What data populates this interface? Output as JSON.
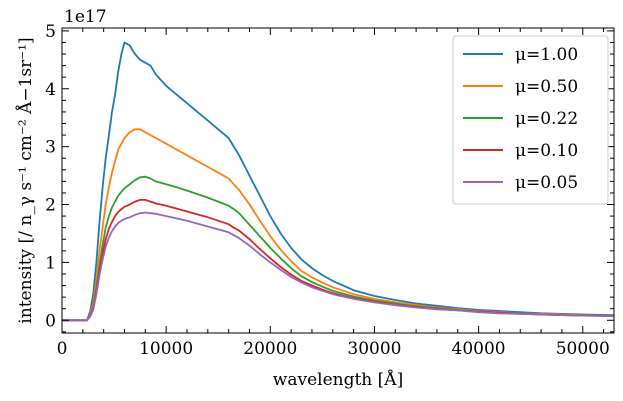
{
  "chart_data": {
    "type": "line",
    "xlabel": "wavelength [Å]",
    "ylabel": "intensity [/ n_γ s⁻¹ cm⁻² Å−1sr⁻¹]",
    "y_offset_label": "1e17",
    "xlim": [
      0,
      53000
    ],
    "ylim": [
      -0.22,
      5.05
    ],
    "y_scale": 1e+17,
    "x_ticks": [
      0,
      10000,
      20000,
      30000,
      40000,
      50000
    ],
    "x_tick_labels": [
      "0",
      "10000",
      "20000",
      "30000",
      "40000",
      "50000"
    ],
    "y_ticks": [
      0,
      1,
      2,
      3,
      4,
      5
    ],
    "y_tick_labels": [
      "0",
      "1",
      "2",
      "3",
      "4",
      "5"
    ],
    "grid": false,
    "legend_position": "top-right",
    "x": [
      0,
      2400,
      2700,
      3000,
      3300,
      3600,
      3900,
      4200,
      4500,
      4800,
      5100,
      5400,
      5700,
      6000,
      6500,
      7000,
      7500,
      8000,
      8500,
      9000,
      10000,
      11000,
      12000,
      13000,
      14000,
      15000,
      16000,
      16500,
      17000,
      18000,
      19000,
      20000,
      21000,
      22000,
      23000,
      24000,
      25000,
      26000,
      28000,
      30000,
      32000,
      34000,
      36000,
      38000,
      40000,
      42000,
      44000,
      46000,
      48000,
      50000,
      53000
    ],
    "series": [
      {
        "name": "μ=1.00",
        "color": "#1f77b4",
        "values": [
          0,
          0,
          0.15,
          0.45,
          1.0,
          1.7,
          2.3,
          2.8,
          3.2,
          3.6,
          3.9,
          4.3,
          4.6,
          4.8,
          4.75,
          4.6,
          4.5,
          4.45,
          4.4,
          4.25,
          4.05,
          3.9,
          3.75,
          3.6,
          3.45,
          3.3,
          3.15,
          3.0,
          2.85,
          2.5,
          2.15,
          1.8,
          1.5,
          1.25,
          1.05,
          0.9,
          0.78,
          0.68,
          0.52,
          0.42,
          0.35,
          0.29,
          0.25,
          0.21,
          0.18,
          0.16,
          0.14,
          0.12,
          0.11,
          0.1,
          0.09
        ]
      },
      {
        "name": "μ=0.50",
        "color": "#ff7f0e",
        "values": [
          0,
          0,
          0.1,
          0.3,
          0.7,
          1.2,
          1.6,
          2.0,
          2.3,
          2.55,
          2.75,
          2.95,
          3.05,
          3.15,
          3.25,
          3.3,
          3.3,
          3.25,
          3.2,
          3.15,
          3.05,
          2.95,
          2.85,
          2.75,
          2.65,
          2.55,
          2.45,
          2.35,
          2.25,
          2.0,
          1.72,
          1.45,
          1.22,
          1.02,
          0.85,
          0.74,
          0.65,
          0.57,
          0.45,
          0.37,
          0.31,
          0.26,
          0.22,
          0.19,
          0.16,
          0.14,
          0.12,
          0.11,
          0.1,
          0.09,
          0.08
        ]
      },
      {
        "name": "μ=0.22",
        "color": "#2ca02c",
        "values": [
          0,
          0,
          0.08,
          0.22,
          0.55,
          0.95,
          1.3,
          1.6,
          1.8,
          1.95,
          2.05,
          2.15,
          2.22,
          2.28,
          2.35,
          2.42,
          2.47,
          2.48,
          2.45,
          2.4,
          2.35,
          2.3,
          2.24,
          2.18,
          2.12,
          2.05,
          1.98,
          1.92,
          1.85,
          1.65,
          1.45,
          1.25,
          1.07,
          0.9,
          0.76,
          0.66,
          0.58,
          0.51,
          0.41,
          0.34,
          0.29,
          0.24,
          0.21,
          0.18,
          0.15,
          0.13,
          0.12,
          0.1,
          0.09,
          0.085,
          0.08
        ]
      },
      {
        "name": "μ=0.10",
        "color": "#d62728",
        "values": [
          0,
          0,
          0.07,
          0.2,
          0.5,
          0.85,
          1.15,
          1.4,
          1.58,
          1.7,
          1.8,
          1.87,
          1.92,
          1.96,
          2.0,
          2.05,
          2.08,
          2.08,
          2.05,
          2.02,
          1.98,
          1.93,
          1.88,
          1.83,
          1.78,
          1.72,
          1.66,
          1.6,
          1.55,
          1.4,
          1.23,
          1.07,
          0.92,
          0.79,
          0.68,
          0.6,
          0.53,
          0.47,
          0.38,
          0.32,
          0.27,
          0.23,
          0.2,
          0.17,
          0.15,
          0.13,
          0.11,
          0.1,
          0.09,
          0.08,
          0.075
        ]
      },
      {
        "name": "μ=0.05",
        "color": "#9467bd",
        "values": [
          0,
          0,
          0.06,
          0.18,
          0.45,
          0.78,
          1.05,
          1.27,
          1.43,
          1.54,
          1.62,
          1.68,
          1.72,
          1.75,
          1.78,
          1.82,
          1.85,
          1.86,
          1.85,
          1.84,
          1.8,
          1.76,
          1.72,
          1.67,
          1.62,
          1.57,
          1.52,
          1.47,
          1.42,
          1.29,
          1.14,
          1.0,
          0.87,
          0.75,
          0.65,
          0.57,
          0.51,
          0.45,
          0.37,
          0.31,
          0.26,
          0.22,
          0.19,
          0.17,
          0.14,
          0.12,
          0.11,
          0.1,
          0.09,
          0.08,
          0.07
        ]
      }
    ]
  }
}
